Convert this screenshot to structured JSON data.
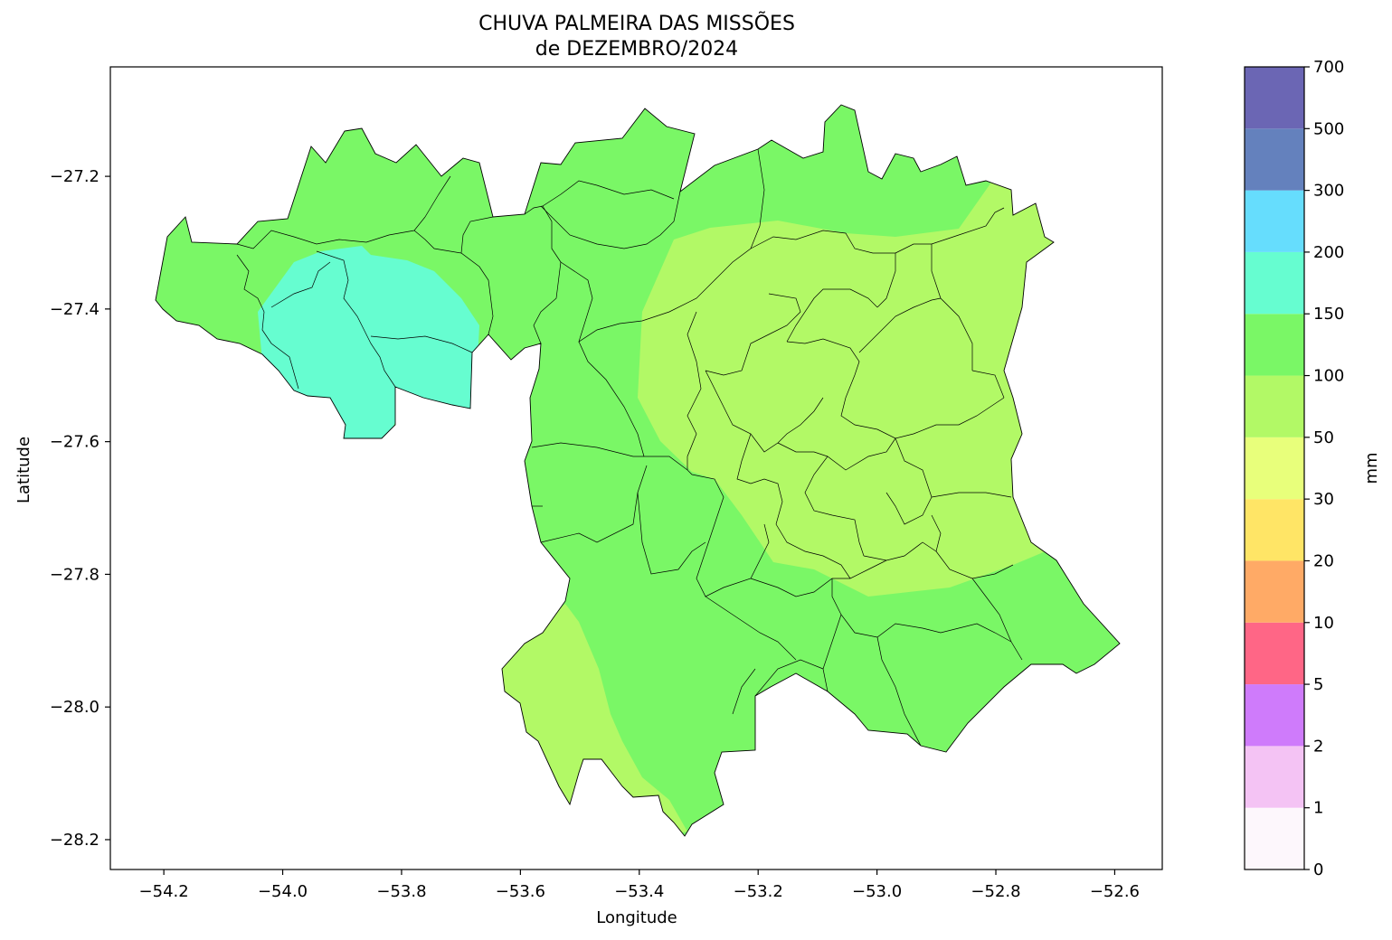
{
  "title": {
    "line1": "CHUVA PALMEIRA DAS MISSÕES",
    "line2": "de DEZEMBRO/2024"
  },
  "axes": {
    "xlabel": "Longitude",
    "ylabel": "Latitude",
    "xlim": [
      -54.29,
      -52.52
    ],
    "ylim": [
      -28.245,
      -27.035
    ],
    "xticks": [
      -54.2,
      -54.0,
      -53.8,
      -53.6,
      -53.4,
      -53.2,
      -53.0,
      -52.8,
      -52.6
    ],
    "yticks": [
      -27.2,
      -27.4,
      -27.6,
      -27.8,
      -28.0,
      -28.2
    ],
    "xtick_labels": [
      "−54.2",
      "−54.0",
      "−53.8",
      "−53.6",
      "−53.4",
      "−53.2",
      "−53.0",
      "−52.8",
      "−52.6"
    ],
    "ytick_labels": [
      "−27.2",
      "−27.4",
      "−27.6",
      "−27.8",
      "−28.0",
      "−28.2"
    ]
  },
  "colorbar": {
    "label": "mm",
    "levels": [
      "0",
      "1",
      "2",
      "5",
      "10",
      "20",
      "30",
      "50",
      "100",
      "150",
      "200",
      "300",
      "500",
      "700"
    ],
    "colors": [
      "#fdf7fc",
      "#f4c3f4",
      "#cf7bfb",
      "#ff6686",
      "#ffaa66",
      "#ffe566",
      "#e8ff7b",
      "#b2f966",
      "#7af766",
      "#66fdd0",
      "#66ddfd",
      "#6481bd",
      "#6b66b4"
    ]
  },
  "map_regions": [
    {
      "name": "north-west-wet-zone",
      "class": "150-200 mm",
      "color": "#66fdd0"
    },
    {
      "name": "west-north-band",
      "class": "100-150 mm",
      "color": "#7af766"
    },
    {
      "name": "east-plateau",
      "class": "50-100 mm",
      "color": "#b2f966"
    },
    {
      "name": "south-west-lobe",
      "class": "50-100 mm",
      "color": "#b2f966"
    }
  ]
}
